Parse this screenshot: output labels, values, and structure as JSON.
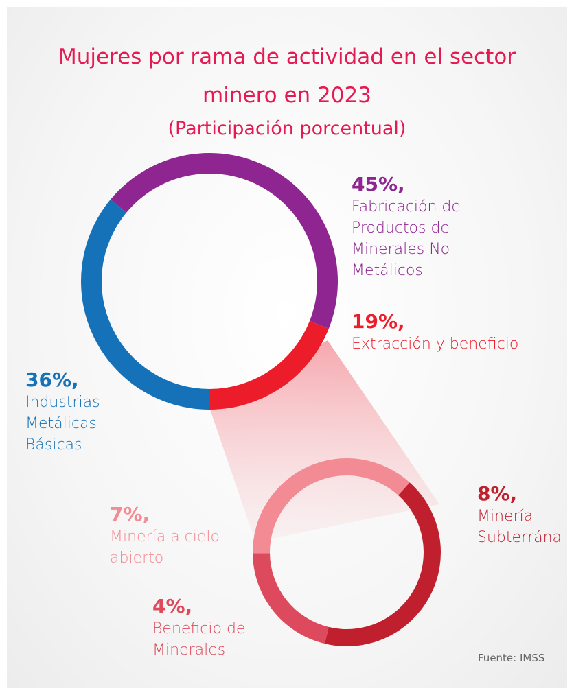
{
  "chart_data": [
    {
      "type": "donut",
      "title": "Mujeres por rama de actividad en el sector minero en 2023",
      "subtitle": "(Participación porcentual)",
      "categories": [
        "Fabricación de Productos de Minerales No Metálicos",
        "Extracción y beneficio",
        "Industrias Metálicas Básicas"
      ],
      "values": [
        45,
        19,
        36
      ],
      "value_labels": [
        "45%,",
        "19%,",
        "36%,"
      ],
      "colors": [
        "#8e2590",
        "#ec1c2b",
        "#1572b8"
      ]
    },
    {
      "type": "donut",
      "categories": [
        "Minería Subterrána",
        "Beneficio de Minerales",
        "Minería a cielo abierto"
      ],
      "values": [
        8,
        4,
        7
      ],
      "value_labels": [
        "8%,",
        "4%,",
        "7%,"
      ],
      "colors": [
        "#c0202e",
        "#dd4a5e",
        "#f28b93"
      ]
    }
  ],
  "source": "Fuente: IMSS"
}
